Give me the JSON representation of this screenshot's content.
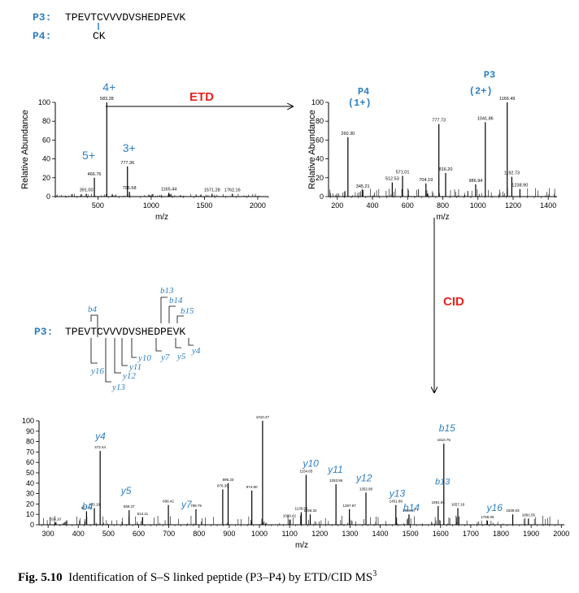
{
  "header": {
    "p3_label": "P3:",
    "p3_sequence": "TPEVTCVVVDVSHEDPEVK",
    "p4_label": "P4:",
    "p4_sequence": "CK"
  },
  "arrows": {
    "etd_label": "ETD",
    "cid_label": "CID"
  },
  "fragment_map": {
    "p3_label": "P3:",
    "sequence": "TPEVTCVVVDVSHEDPEVK",
    "b_ions": [
      "b4",
      "b13",
      "b14",
      "b15"
    ],
    "y_ions": [
      "y4",
      "y5",
      "y7",
      "y10",
      "y11",
      "y12",
      "y13",
      "y16"
    ]
  },
  "caption": {
    "figure_number": "Fig. 5.10",
    "text": "Identification of S–S linked peptide (P3–P4) by ETD/CID MS",
    "superscript": "3"
  },
  "chart_data": [
    {
      "type": "bar",
      "ylabel": "Relative Abundance",
      "xlabel": "m/z",
      "xlim": [
        100,
        2100
      ],
      "ylim": [
        0,
        100
      ],
      "x_ticks": [
        500,
        1000,
        1500,
        2000
      ],
      "y_ticks": [
        0,
        20,
        40,
        60,
        80,
        100
      ],
      "peaks": [
        {
          "mz": 391.0,
          "intensity": 3
        },
        {
          "mz": 466.76,
          "intensity": 20
        },
        {
          "mz": 583.28,
          "intensity": 100
        },
        {
          "mz": 777.36,
          "intensity": 32
        },
        {
          "mz": 795.68,
          "intensity": 5
        },
        {
          "mz": 1165.44,
          "intensity": 4
        },
        {
          "mz": 1571.28,
          "intensity": 3
        },
        {
          "mz": 1762.16,
          "intensity": 3
        }
      ],
      "peak_labels": [
        "391.00",
        "466.76",
        "583.28",
        "777.36",
        "795.68",
        "1165.44",
        "1571.28",
        "1762.16"
      ],
      "annotations": [
        {
          "text": "4+",
          "mz": 583.28
        },
        {
          "text": "5+",
          "mz": 466.76
        },
        {
          "text": "3+",
          "mz": 777.36
        }
      ]
    },
    {
      "type": "bar",
      "ylabel": "Relative Abundance",
      "xlabel": "m/z",
      "xlim": [
        150,
        1450
      ],
      "ylim": [
        0,
        100
      ],
      "x_ticks": [
        200,
        400,
        600,
        800,
        1000,
        1200,
        1400
      ],
      "y_ticks": [
        0,
        20,
        40,
        60,
        80,
        100
      ],
      "peaks": [
        {
          "mz": 260.3,
          "intensity": 63
        },
        {
          "mz": 345.21,
          "intensity": 7
        },
        {
          "mz": 512.53,
          "intensity": 15
        },
        {
          "mz": 571.01,
          "intensity": 22
        },
        {
          "mz": 704.19,
          "intensity": 14
        },
        {
          "mz": 777.73,
          "intensity": 77
        },
        {
          "mz": 816.2,
          "intensity": 25
        },
        {
          "mz": 986.94,
          "intensity": 13
        },
        {
          "mz": 1041.86,
          "intensity": 79
        },
        {
          "mz": 1166.49,
          "intensity": 100
        },
        {
          "mz": 1192.73,
          "intensity": 21
        },
        {
          "mz": 1238.9,
          "intensity": 8
        }
      ],
      "peak_labels": [
        "260.30",
        "345.21",
        "512.53",
        "571.01",
        "704.19",
        "777.73",
        "816.20",
        "986.94",
        "1041.86",
        "1166.49",
        "1192.73",
        "1238.90"
      ],
      "annotations": [
        {
          "text": "P4",
          "mz": 260.3
        },
        {
          "text": "(1+)",
          "mz": 260.3
        },
        {
          "text": "P3",
          "mz": 1041.86
        },
        {
          "text": "(2+)",
          "mz": 1041.86
        }
      ]
    },
    {
      "type": "bar",
      "ylabel": "",
      "xlabel": "m/z",
      "xlim": [
        270,
        2010
      ],
      "ylim": [
        0,
        100
      ],
      "x_ticks": [
        300,
        400,
        500,
        600,
        700,
        800,
        900,
        1000,
        1100,
        1200,
        1300,
        1400,
        1500,
        1600,
        1700,
        1800,
        1900,
        2000
      ],
      "y_ticks": [
        0,
        10,
        20,
        30,
        40,
        50,
        60,
        70,
        80,
        90,
        100
      ],
      "peaks": [
        {
          "mz": 324.1,
          "intensity": 2
        },
        {
          "mz": 427.24,
          "intensity": 13
        },
        {
          "mz": 453.19,
          "intensity": 16
        },
        {
          "mz": 472.44,
          "intensity": 71
        },
        {
          "mz": 568.37,
          "intensity": 14
        },
        {
          "mz": 613.11,
          "intensity": 7
        },
        {
          "mz": 698.42,
          "intensity": 19
        },
        {
          "mz": 789.79,
          "intensity": 15
        },
        {
          "mz": 878.39,
          "intensity": 34
        },
        {
          "mz": 896.33,
          "intensity": 40
        },
        {
          "mz": 974.8,
          "intensity": 33
        },
        {
          "mz": 1010.47,
          "intensity": 100
        },
        {
          "mz": 1099.42,
          "intensity": 5
        },
        {
          "mz": 1138.5,
          "intensity": 12
        },
        {
          "mz": 1154.65,
          "intensity": 48
        },
        {
          "mz": 1168.32,
          "intensity": 10
        },
        {
          "mz": 1253.56,
          "intensity": 39
        },
        {
          "mz": 1297.97,
          "intensity": 15
        },
        {
          "mz": 1352.86,
          "intensity": 31
        },
        {
          "mz": 1451.89,
          "intensity": 19
        },
        {
          "mz": 1495.37,
          "intensity": 10
        },
        {
          "mz": 1591.94,
          "intensity": 18
        },
        {
          "mz": 1610.75,
          "intensity": 78
        },
        {
          "mz": 1657.19,
          "intensity": 16
        },
        {
          "mz": 1755.05,
          "intensity": 4
        },
        {
          "mz": 1839.03,
          "intensity": 10
        },
        {
          "mz": 1891.05,
          "intensity": 6
        }
      ],
      "peak_labels": [
        "324.10",
        "427.24",
        "453.19",
        "472.44",
        "568.37",
        "613.11",
        "698.42",
        "789.79",
        "878.39",
        "896.33",
        "974.80",
        "1010.47",
        "1099.42",
        "1138.50",
        "1154.65",
        "1168.32",
        "1253.56",
        "1297.97",
        "1352.86",
        "1451.89",
        "1495.37",
        "1591.94",
        "1610.75",
        "1657.19",
        "1755.05",
        "1839.03",
        "1891.05"
      ],
      "annotations": [
        {
          "text": "y4",
          "mz": 472.44
        },
        {
          "text": "b4",
          "mz": 453.19
        },
        {
          "text": "y5",
          "mz": 568.37
        },
        {
          "text": "y7",
          "mz": 789.79
        },
        {
          "text": "y10",
          "mz": 1154.65
        },
        {
          "text": "y11",
          "mz": 1253.56
        },
        {
          "text": "y12",
          "mz": 1352.86
        },
        {
          "text": "y13",
          "mz": 1451.89
        },
        {
          "text": "b13",
          "mz": 1352.86
        },
        {
          "text": "b14",
          "mz": 1495.37
        },
        {
          "text": "b15",
          "mz": 1610.75
        },
        {
          "text": "y16",
          "mz": 1839.03
        }
      ]
    }
  ]
}
